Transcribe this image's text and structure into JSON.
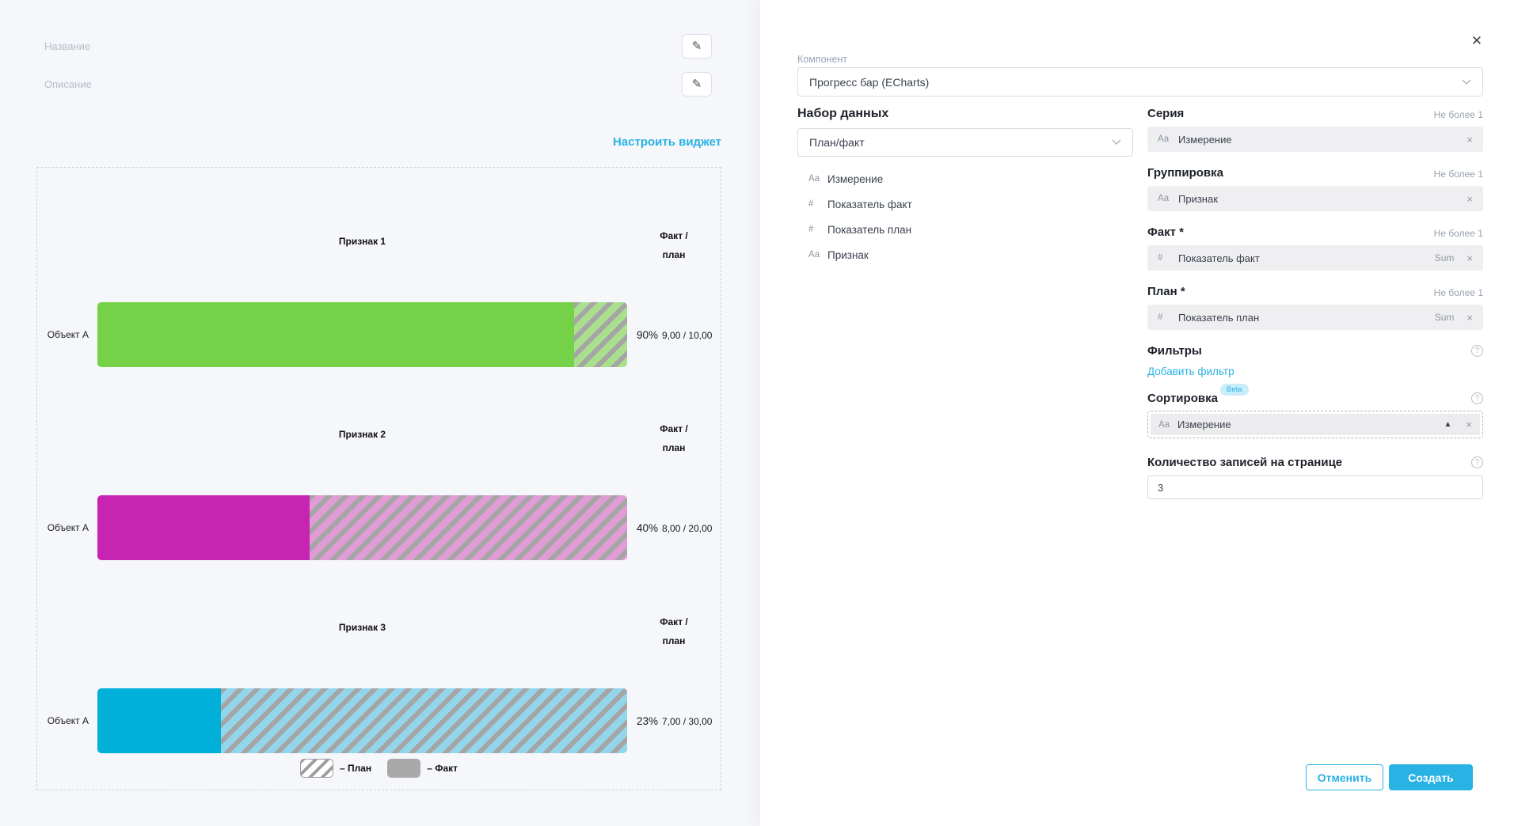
{
  "accent_color": "#29b2e4",
  "left": {
    "name_placeholder": "Название",
    "description_placeholder": "Описание",
    "configure_link": "Настроить виджет"
  },
  "chart_data": {
    "type": "bar",
    "subtype": "progress-fact-plan",
    "stripe_color": "#a5a5a5",
    "legend_fact_color": "#a9a9a9",
    "groups": [
      {
        "title": "Признак 1",
        "header_line1": "Факт /",
        "header_line2": "план",
        "category": "Объект А",
        "fact": 9,
        "plan": 10,
        "percent": "90%",
        "values_text": "9,00 / 10,00",
        "color": "#74d148",
        "tint": "#a9df8d"
      },
      {
        "title": "Признак 2",
        "header_line1": "Факт /",
        "header_line2": "план",
        "category": "Объект А",
        "fact": 8,
        "plan": 20,
        "percent": "40%",
        "values_text": "8,00 / 20,00",
        "color": "#c724b2",
        "tint": "#df9cd5"
      },
      {
        "title": "Признак 3",
        "header_line1": "Факт /",
        "header_line2": "план",
        "category": "Объект А",
        "fact": 7,
        "plan": 30,
        "percent": "23%",
        "values_text": "7,00 / 30,00",
        "color": "#00b0d8",
        "tint": "#93d5ea"
      }
    ],
    "legend": {
      "plan_label": "– План",
      "fact_label": "– Факт"
    }
  },
  "panel": {
    "component_label": "Компонент",
    "component_value": "Прогресс бар (ECharts)",
    "dataset_heading": "Набор данных",
    "dataset_value": "План/факт",
    "dataset_fields": [
      {
        "icon": "Аа",
        "label": "Измерение"
      },
      {
        "icon": "#",
        "label": "Показатель факт"
      },
      {
        "icon": "#",
        "label": "Показатель план"
      },
      {
        "icon": "Аа",
        "label": "Признак"
      }
    ],
    "slots": [
      {
        "label": "Серия",
        "limit": "Не более 1",
        "chip_icon": "Аа",
        "chip_label": "Измерение",
        "agg": "",
        "remove": "×"
      },
      {
        "label": "Группировка",
        "limit": "Не более 1",
        "chip_icon": "Аа",
        "chip_label": "Признак",
        "agg": "",
        "remove": "×"
      },
      {
        "label": "Факт *",
        "limit": "Не более 1",
        "chip_icon": "#",
        "chip_label": "Показатель факт",
        "agg": "Sum",
        "remove": "×"
      },
      {
        "label": "План *",
        "limit": "Не более 1",
        "chip_icon": "#",
        "chip_label": "Показатель план",
        "agg": "Sum",
        "remove": "×"
      }
    ],
    "filters_label": "Фильтры",
    "add_filter_link": "Добавить фильтр",
    "sorting_label": "Сортировка",
    "beta_badge": "Beta",
    "sort_chip_icon": "Аа",
    "sort_chip_label": "Измерение",
    "sort_dir_icon": "▲",
    "sort_remove": "×",
    "page_size_label": "Количество записей на странице",
    "page_size_value": "3",
    "cancel_button": "Отменить",
    "create_button": "Создать",
    "close_icon": "✕",
    "help_icon": "?"
  }
}
